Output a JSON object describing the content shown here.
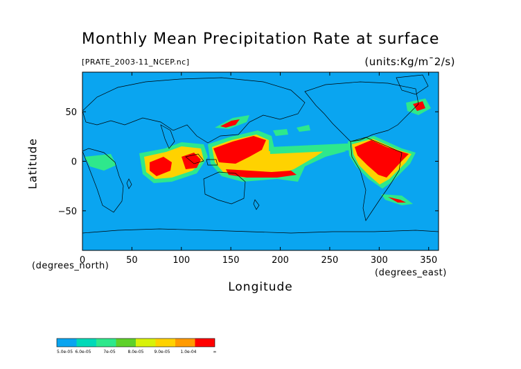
{
  "title": "Monthly Mean Precipitation Rate at surface",
  "file_label": "[PRATE_2003-11_NCEP.nc]",
  "units_label": "(units:Kg/m¯2/s)",
  "axes": {
    "xlabel": "Longitude",
    "ylabel": "Latitude",
    "x_units": "(degrees_east)",
    "y_units": "(degrees_north)",
    "x_ticks": [
      "0",
      "50",
      "100",
      "150",
      "200",
      "250",
      "300",
      "350"
    ],
    "y_ticks": [
      "50",
      "0",
      "−50"
    ],
    "x_range": [
      0,
      360
    ],
    "y_range": [
      -90,
      90
    ]
  },
  "colors": {
    "ocean_base": "#0aa5f0",
    "coast": "#000000"
  },
  "colorbar": {
    "colors": [
      "#0aa5f0",
      "#00d9b8",
      "#2ee88c",
      "#5fd12a",
      "#d8f20a",
      "#ffd200",
      "#ff9a00",
      "#ff0000"
    ],
    "labels": [
      "5.0e-05",
      "6.0e-05",
      "7e-05",
      "8.0e-05",
      "9.0e-05",
      "1.0e-04",
      "∞"
    ]
  }
}
